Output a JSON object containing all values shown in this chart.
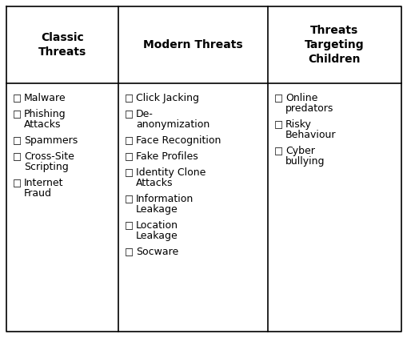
{
  "col_headers": [
    "Classic\nThreats",
    "Modern Threats",
    "Threats\nTargeting\nChildren"
  ],
  "col1_items": [
    "Malware",
    "Phishing\nAttacks",
    "Spammers",
    "Cross-Site\nScripting",
    "Internet\nFraud"
  ],
  "col2_items": [
    "Click Jacking",
    "De-\nanonymization",
    "Face Recognition",
    "Fake Profiles",
    "Identity Clone\nAttacks",
    "Information\nLeakage",
    "Location\nLeakage",
    "Socware"
  ],
  "col3_items": [
    "Online\npredators",
    "Risky\nBehaviour",
    "Cyber\nbullying"
  ],
  "bg_color": "#ffffff",
  "line_color": "#000000",
  "header_fontsize": 10,
  "body_fontsize": 9,
  "checkbox_char": "□",
  "fig_width": 5.1,
  "fig_height": 4.22,
  "dpi": 100
}
